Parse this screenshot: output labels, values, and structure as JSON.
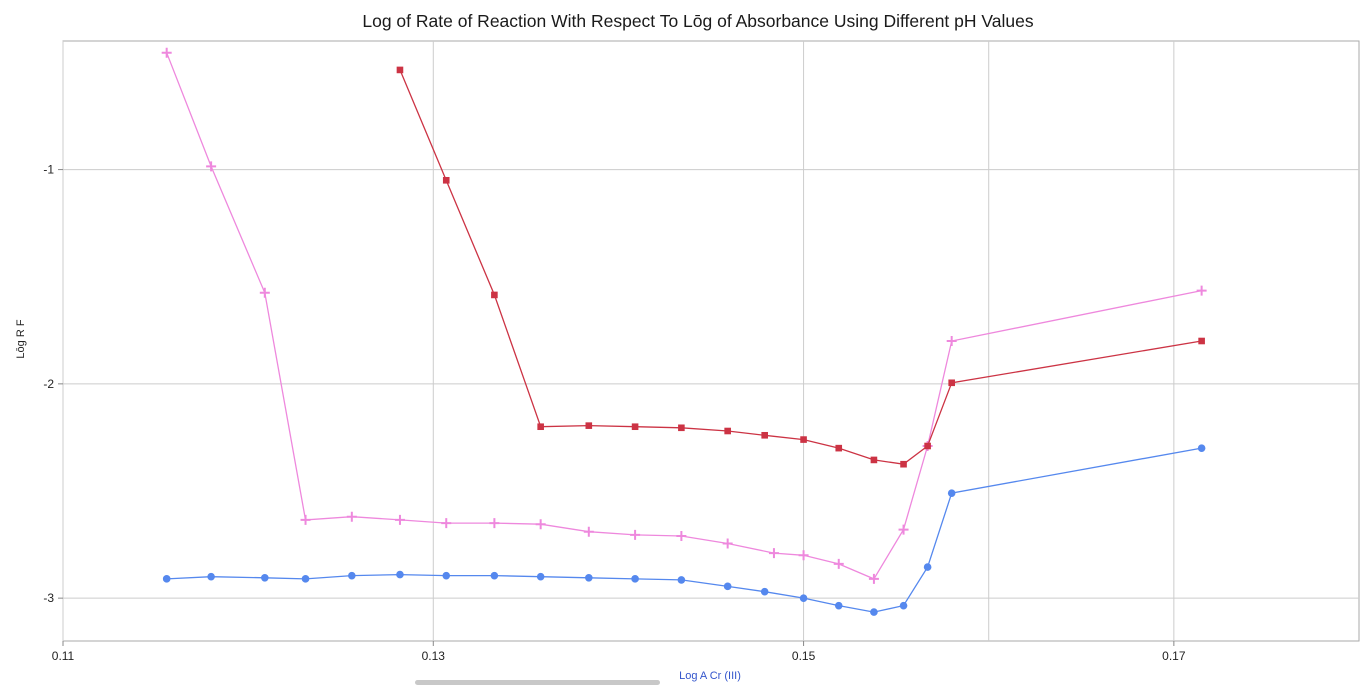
{
  "chart_data": {
    "type": "line",
    "title": "Log of Rate of Reaction With Respect To Lōg of Absorbance Using Different pH Values",
    "xlabel": "Log A Cr (III)",
    "ylabel": "Lōg R F",
    "xlim": [
      0.11,
      0.18
    ],
    "ylim": [
      -3.2,
      -0.4
    ],
    "xticks": [
      {
        "value": 0.11,
        "label": "0.11"
      },
      {
        "value": 0.13,
        "label": "0.13"
      },
      {
        "value": 0.15,
        "label": "0.15"
      },
      {
        "value": 0.17,
        "label": "0.17"
      }
    ],
    "xgrid": [
      0.11,
      0.13,
      0.15,
      0.16,
      0.17
    ],
    "yticks": [
      {
        "value": -1,
        "label": "-1"
      },
      {
        "value": -2,
        "label": "-2"
      },
      {
        "value": -3,
        "label": "-3"
      }
    ],
    "grid": true,
    "series": [
      {
        "color": "#ee88dd",
        "marker": "plus",
        "points": [
          [
            0.1156,
            -0.455
          ],
          [
            0.118,
            -0.985
          ],
          [
            0.1209,
            -1.575
          ],
          [
            0.1231,
            -2.635
          ],
          [
            0.1256,
            -2.62
          ],
          [
            0.1282,
            -2.635
          ],
          [
            0.1307,
            -2.65
          ],
          [
            0.1333,
            -2.65
          ],
          [
            0.1358,
            -2.655
          ],
          [
            0.1384,
            -2.69
          ],
          [
            0.1409,
            -2.705
          ],
          [
            0.1434,
            -2.71
          ],
          [
            0.1459,
            -2.745
          ],
          [
            0.1484,
            -2.79
          ],
          [
            0.15,
            -2.8
          ],
          [
            0.1519,
            -2.84
          ],
          [
            0.1538,
            -2.91
          ],
          [
            0.1554,
            -2.68
          ],
          [
            0.1567,
            -2.29
          ],
          [
            0.158,
            -1.8
          ],
          [
            0.1715,
            -1.565
          ]
        ]
      },
      {
        "color": "#cc3344",
        "marker": "square",
        "points": [
          [
            0.1282,
            -0.535
          ],
          [
            0.1307,
            -1.05
          ],
          [
            0.1333,
            -1.585
          ],
          [
            0.1358,
            -2.2
          ],
          [
            0.1384,
            -2.195
          ],
          [
            0.1409,
            -2.2
          ],
          [
            0.1434,
            -2.205
          ],
          [
            0.1459,
            -2.22
          ],
          [
            0.1479,
            -2.24
          ],
          [
            0.15,
            -2.26
          ],
          [
            0.1519,
            -2.3
          ],
          [
            0.1538,
            -2.355
          ],
          [
            0.1554,
            -2.375
          ],
          [
            0.1567,
            -2.29
          ],
          [
            0.158,
            -1.995
          ],
          [
            0.1715,
            -1.8
          ]
        ]
      },
      {
        "color": "#5588ee",
        "marker": "circle",
        "points": [
          [
            0.1156,
            -2.91
          ],
          [
            0.118,
            -2.9
          ],
          [
            0.1209,
            -2.905
          ],
          [
            0.1231,
            -2.91
          ],
          [
            0.1256,
            -2.895
          ],
          [
            0.1282,
            -2.89
          ],
          [
            0.1307,
            -2.895
          ],
          [
            0.1333,
            -2.895
          ],
          [
            0.1358,
            -2.9
          ],
          [
            0.1384,
            -2.905
          ],
          [
            0.1409,
            -2.91
          ],
          [
            0.1434,
            -2.915
          ],
          [
            0.1459,
            -2.945
          ],
          [
            0.1479,
            -2.97
          ],
          [
            0.15,
            -3.0
          ],
          [
            0.1519,
            -3.035
          ],
          [
            0.1538,
            -3.065
          ],
          [
            0.1554,
            -3.035
          ],
          [
            0.1567,
            -2.855
          ],
          [
            0.158,
            -2.51
          ],
          [
            0.1715,
            -2.3
          ]
        ]
      }
    ]
  }
}
